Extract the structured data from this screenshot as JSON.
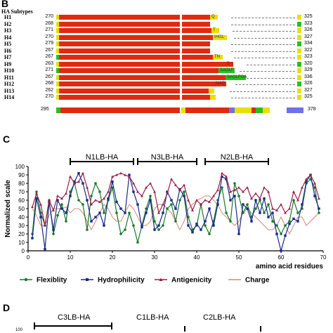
{
  "panel_b": {
    "letter": "B",
    "subtypes_header": "HA Subtypes",
    "rows": [
      {
        "label": "H1",
        "start": "270",
        "end": "325",
        "tail": "yellow",
        "tail_mark": "Q"
      },
      {
        "label": "H2",
        "start": "268",
        "end": "323",
        "tail": "none",
        "tail_mark": ""
      },
      {
        "label": "H3",
        "start": "271",
        "end": "326",
        "tail": "yellow",
        "tail_mark": "T"
      },
      {
        "label": "H4",
        "start": "270",
        "end": "327",
        "tail": "yellow",
        "tail_mark": "IHGL"
      },
      {
        "label": "H5",
        "start": "279",
        "end": "334",
        "tail": "none",
        "tail_mark": ""
      },
      {
        "label": "H6",
        "start": "267",
        "end": "322",
        "tail": "none",
        "tail_mark": ""
      },
      {
        "label": "H7",
        "start": "267",
        "end": "323",
        "tail": "yellow",
        "tail_mark": "TN"
      },
      {
        "label": "H9",
        "start": "263",
        "end": "320",
        "tail": "red",
        "tail_mark": "S"
      },
      {
        "label": "H10",
        "start": "271",
        "end": "329",
        "tail": "green",
        "tail_mark": "SAGLF"
      },
      {
        "label": "H11",
        "start": "267",
        "end": "336",
        "tail": "green",
        "tail_mark": "SAGLFGA"
      },
      {
        "label": "H12",
        "start": "268",
        "end": "326",
        "tail": "red",
        "tail_mark": "NAG"
      },
      {
        "label": "H13",
        "start": "262",
        "end": "327",
        "tail": "yellow",
        "tail_mark": ""
      },
      {
        "label": "H14",
        "start": "270",
        "end": "325",
        "tail": "yellow",
        "tail_mark": ""
      }
    ],
    "consensus_start": "295",
    "consensus_end": "378"
  },
  "panel_c": {
    "letter": "C",
    "regions": [
      {
        "label": "N1LB-HA",
        "from": 10,
        "to": 25
      },
      {
        "label": "N3LB-HA",
        "from": 26,
        "to": 40
      },
      {
        "label": "N2LB-HA",
        "from": 42,
        "to": 57
      }
    ]
  },
  "panel_d": {
    "letter": "D",
    "labels": [
      "C3LB-HA",
      "C1LB-HA",
      "C2LB-HA"
    ],
    "y_tick_partial": "100"
  },
  "colors": {
    "flexibility": "#1a7a2a",
    "hydrophilicity": "#1a2a8a",
    "antigenicity": "#9a1f4a",
    "charge": "#d08a7a",
    "seq_red": "#e02a10",
    "seq_yellow": "#e8e000",
    "seq_green": "#28c020",
    "seq_blue": "#7070e8"
  },
  "chart_data": {
    "type": "line",
    "title": "",
    "xlabel": "amino acid residues",
    "ylabel": "Normalized scale",
    "xlim": [
      0,
      70
    ],
    "ylim": [
      0,
      100
    ],
    "xticks": [
      0,
      10,
      20,
      30,
      40,
      50,
      60,
      70
    ],
    "yticks": [
      0,
      10,
      20,
      30,
      40,
      50,
      60,
      70,
      80,
      90,
      100
    ],
    "grid": false,
    "legend_position": "bottom",
    "x": [
      1,
      2,
      3,
      4,
      5,
      6,
      7,
      8,
      9,
      10,
      11,
      12,
      13,
      14,
      15,
      16,
      17,
      18,
      19,
      20,
      21,
      22,
      23,
      24,
      25,
      26,
      27,
      28,
      29,
      30,
      31,
      32,
      33,
      34,
      35,
      36,
      37,
      38,
      39,
      40,
      41,
      42,
      43,
      44,
      45,
      46,
      47,
      48,
      49,
      50,
      51,
      52,
      53,
      54,
      55,
      56,
      57,
      58,
      59,
      60,
      61,
      62,
      63,
      64,
      65,
      66,
      67,
      68,
      69
    ],
    "series": [
      {
        "name": "Flexiblity",
        "marker": "circle",
        "values": [
          20,
          70,
          45,
          30,
          60,
          20,
          42,
          55,
          35,
          70,
          80,
          60,
          55,
          25,
          65,
          80,
          70,
          45,
          60,
          75,
          45,
          20,
          25,
          45,
          30,
          10,
          30,
          50,
          65,
          35,
          25,
          30,
          50,
          55,
          35,
          60,
          70,
          40,
          25,
          30,
          55,
          30,
          20,
          35,
          60,
          75,
          45,
          35,
          80,
          65,
          45,
          55,
          40,
          50,
          60,
          45,
          55,
          35,
          30,
          20,
          30,
          35,
          60,
          45,
          50,
          80,
          85,
          75,
          45
        ]
      },
      {
        "name": "Hydrophilicity",
        "marker": "square",
        "values": [
          15,
          62,
          40,
          2,
          58,
          25,
          60,
          50,
          45,
          65,
          82,
          92,
          80,
          60,
          35,
          40,
          45,
          30,
          62,
          82,
          58,
          50,
          45,
          90,
          70,
          55,
          28,
          45,
          60,
          25,
          30,
          45,
          70,
          60,
          50,
          73,
          65,
          30,
          22,
          32,
          25,
          35,
          50,
          30,
          55,
          88,
          85,
          60,
          65,
          20,
          55,
          50,
          35,
          60,
          45,
          62,
          40,
          45,
          20,
          0,
          18,
          32,
          38,
          35,
          55,
          82,
          90,
          65,
          50
        ]
      },
      {
        "name": "Antigenicity",
        "marker": "triangle",
        "values": [
          52,
          68,
          55,
          30,
          60,
          48,
          65,
          62,
          68,
          88,
          80,
          82,
          92,
          75,
          55,
          60,
          58,
          62,
          70,
          88,
          90,
          92,
          90,
          88,
          80,
          70,
          65,
          75,
          80,
          70,
          45,
          55,
          68,
          85,
          78,
          72,
          78,
          60,
          48,
          60,
          55,
          60,
          58,
          65,
          72,
          92,
          88,
          70,
          72,
          75,
          70,
          75,
          62,
          68,
          62,
          75,
          70,
          50,
          48,
          55,
          45,
          50,
          70,
          60,
          75,
          85,
          90,
          80,
          62
        ]
      },
      {
        "name": "Charge",
        "marker": "none",
        "values": [
          50,
          42,
          30,
          30,
          42,
          50,
          50,
          50,
          52,
          45,
          50,
          50,
          45,
          35,
          25,
          35,
          45,
          55,
          50,
          40,
          35,
          35,
          45,
          55,
          50,
          40,
          30,
          30,
          35,
          50,
          55,
          55,
          50,
          45,
          35,
          25,
          35,
          50,
          55,
          60,
          62,
          65,
          65,
          60,
          55,
          45,
          40,
          35,
          30,
          35,
          45,
          50,
          45,
          40,
          35,
          30,
          25,
          25,
          30,
          40,
          30,
          20,
          30,
          40,
          40,
          30,
          35,
          40,
          45
        ]
      }
    ]
  }
}
